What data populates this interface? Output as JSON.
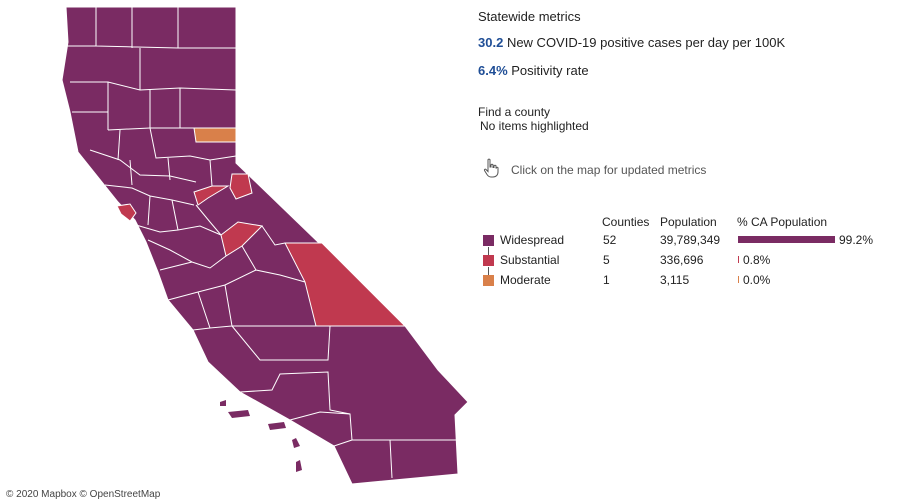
{
  "map": {
    "attribution": "© 2020 Mapbox © OpenStreetMap",
    "colors": {
      "widespread": "#7a2b63",
      "substantial": "#c0394f",
      "moderate": "#d9804a",
      "border": "#ffffff"
    }
  },
  "panel": {
    "title": "Statewide metrics",
    "metrics": [
      {
        "value": "30.2",
        "label": "New COVID-19 positive cases per day per 100K"
      },
      {
        "value": "6.4%",
        "label": "Positivity rate"
      }
    ],
    "find_label": "Find a county",
    "find_value": "No items highlighted",
    "hint": "Click on the map for updated metrics",
    "hint_icon": "pointer-hand-icon",
    "table_headers": {
      "counties": "Counties",
      "population": "Population",
      "pct": "% CA Population"
    },
    "tiers": [
      {
        "name": "Widespread",
        "counties": "52",
        "population": "39,789,349",
        "pct_label": "99.2%",
        "pct_value": 99.2,
        "color": "#7a2b63"
      },
      {
        "name": "Substantial",
        "counties": "5",
        "population": "336,696",
        "pct_label": "0.8%",
        "pct_value": 0.8,
        "color": "#c0394f"
      },
      {
        "name": "Moderate",
        "counties": "1",
        "population": "3,115",
        "pct_label": "0.0%",
        "pct_value": 0.0,
        "color": "#d9804a"
      }
    ]
  }
}
